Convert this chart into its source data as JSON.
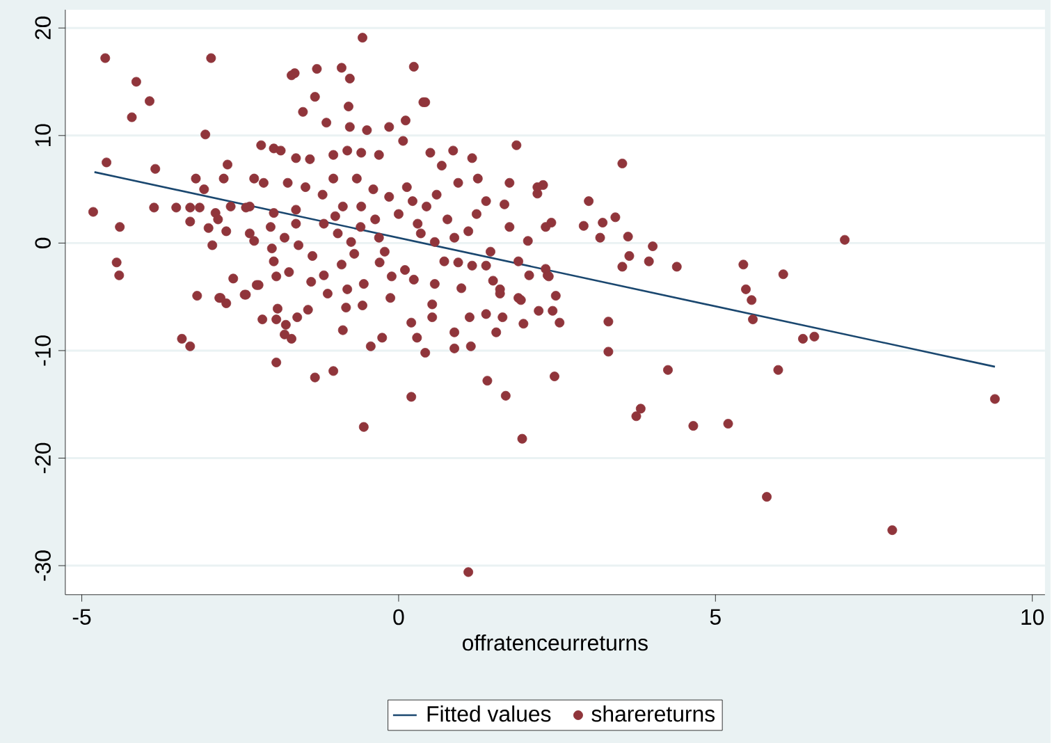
{
  "chart_data": {
    "type": "scatter",
    "xlabel": "offratenceurreturns",
    "xlim": [
      -5.26,
      10.2
    ],
    "ylim": [
      -32.7,
      21.7
    ],
    "xticks": [
      -5,
      0,
      5,
      10
    ],
    "yticks": [
      -30,
      -20,
      -10,
      0,
      10,
      20
    ],
    "grid": "y",
    "legend": "bottom",
    "series": [
      {
        "name": "Fitted values",
        "type": "line",
        "color": "#1a476f",
        "x": [
          -4.8,
          9.41
        ],
        "values": [
          6.6,
          -11.5
        ]
      },
      {
        "name": "sharereturns",
        "type": "scatter",
        "color": "#90353b",
        "marker": "circle",
        "x": [
          -4.82,
          -4.61,
          -4.63,
          -4.14,
          -3.93,
          -4.21,
          -4.45,
          -4.41,
          -4.4,
          -3.84,
          -2.96,
          -3.05,
          -3.42,
          -3.29,
          -3.18,
          -2.83,
          -2.72,
          -2.43,
          -2.24,
          -1.93,
          -1.73,
          -1.93,
          -1.8,
          -1.32,
          -1.03,
          -1.64,
          -1.29,
          -0.79,
          -0.57,
          -0.9,
          -0.77,
          0.24,
          0.39,
          -0.55,
          0.2,
          1.1,
          1.95,
          1.69,
          2.46,
          1.4,
          0.88,
          1.86,
          3.53,
          7.04,
          9.41,
          7.79,
          5.81,
          5.2,
          4.65,
          3.75,
          3.82,
          4.25,
          5.99,
          3.31,
          3.31,
          6.38,
          6.56,
          5.59,
          5.57,
          5.48,
          5.44,
          6.07,
          4.39,
          3.95,
          4.01,
          3.53,
          3.62,
          3.64,
          3.18,
          3.42,
          3.22,
          2.92,
          3.0,
          2.28,
          2.19,
          2.41,
          2.35,
          2.21,
          2.43,
          2.54,
          2.48,
          -2.17,
          -1.97,
          -1.86,
          -1.62,
          -1.4,
          -1.03,
          -0.81,
          -0.59,
          -0.31,
          -0.15,
          0.07,
          0.11,
          -0.5,
          -0.77,
          -1.14,
          -1.51,
          -1.32,
          -1.69,
          0.42,
          0.5,
          0.86,
          1.16,
          0.68,
          0.94,
          1.25,
          1.38,
          1.67,
          1.75,
          2.19,
          1.75,
          2.32,
          1.23,
          1.1,
          1.45,
          2.04,
          1.89,
          2.32,
          0.77,
          0.44,
          0.13,
          -0.15,
          -0.66,
          -1.03,
          -1.47,
          -1.75,
          -2.13,
          -2.28,
          -2.35,
          -2.41,
          -2.65,
          -2.7,
          -2.76,
          -3.2,
          -3.07,
          -3.51,
          -3.29,
          -3.14,
          -3.86,
          -3.29,
          -2.89,
          -2.85,
          -3.0,
          -2.72,
          -2.94,
          -2.35,
          -2.28,
          -2.02,
          -1.97,
          -1.62,
          -1.62,
          -1.58,
          -1.36,
          -1.18,
          -0.96,
          -0.75,
          -0.88,
          -0.59,
          -0.37,
          -0.31,
          -0.22,
          0.0,
          0.22,
          0.35,
          0.57,
          0.88,
          0.72,
          0.94,
          1.16,
          1.38,
          1.6,
          1.89,
          -1.97,
          -1.93,
          -2.61,
          -2.21,
          -2.41,
          -2.81,
          -2.15,
          -1.91,
          -1.78,
          -1.69,
          -1.6,
          -1.43,
          -1.38,
          -1.18,
          -1.12,
          -0.88,
          -0.83,
          -0.81,
          -0.57,
          -0.55,
          -0.44,
          -0.26,
          -0.11,
          -0.13,
          0.2,
          0.24,
          0.29,
          0.42,
          0.53,
          0.53,
          0.57,
          0.99,
          0.88,
          1.14,
          1.12,
          1.38,
          1.54,
          1.64,
          1.49,
          1.6,
          1.93,
          1.97,
          2.06,
          2.37,
          -1.2,
          -0.6,
          -0.3,
          0.1,
          -1.8,
          -0.9,
          -0.4,
          0.6,
          -2.0,
          0.3,
          -1.0,
          -0.7
        ],
        "values": [
          2.9,
          7.5,
          17.2,
          15.0,
          13.2,
          11.7,
          -1.8,
          -3.0,
          1.5,
          6.9,
          17.2,
          10.1,
          -8.9,
          -9.6,
          -4.9,
          -5.1,
          -5.6,
          -4.8,
          -3.9,
          -7.1,
          -2.7,
          -11.1,
          -8.5,
          -12.5,
          -11.9,
          15.8,
          16.2,
          12.7,
          19.1,
          16.3,
          15.3,
          16.4,
          13.1,
          -17.1,
          -14.3,
          -30.6,
          -18.2,
          -14.2,
          -12.4,
          -12.8,
          -8.3,
          9.1,
          7.4,
          0.3,
          -14.5,
          -26.7,
          -23.6,
          -16.8,
          -17.0,
          -16.1,
          -15.4,
          -11.8,
          -11.8,
          -10.1,
          -7.3,
          -8.9,
          -8.7,
          -7.1,
          -5.3,
          -4.3,
          -2.0,
          -2.9,
          -2.2,
          -1.7,
          -0.3,
          -2.2,
          0.6,
          -1.2,
          0.5,
          2.4,
          1.9,
          1.6,
          3.9,
          5.4,
          4.6,
          1.9,
          -3.0,
          -6.3,
          -6.3,
          -7.4,
          -4.9,
          9.1,
          8.8,
          8.6,
          7.9,
          7.8,
          8.2,
          8.6,
          8.4,
          8.2,
          10.8,
          9.5,
          11.4,
          10.5,
          10.8,
          11.2,
          12.2,
          13.6,
          15.6,
          13.1,
          8.4,
          8.6,
          7.9,
          7.2,
          5.6,
          6.0,
          3.9,
          3.6,
          5.6,
          5.2,
          1.5,
          1.5,
          2.7,
          1.1,
          -0.8,
          0.2,
          -1.7,
          -2.4,
          2.2,
          3.4,
          5.2,
          4.3,
          6.0,
          6.0,
          5.2,
          5.6,
          5.6,
          6.0,
          3.4,
          3.3,
          3.4,
          7.3,
          6.0,
          6.0,
          5.0,
          3.3,
          3.3,
          3.3,
          3.3,
          2.0,
          2.8,
          2.2,
          1.4,
          1.1,
          -0.2,
          0.9,
          0.2,
          1.5,
          2.8,
          3.1,
          1.8,
          -0.2,
          -1.2,
          1.8,
          0.9,
          0.1,
          3.4,
          3.4,
          2.2,
          0.5,
          -0.8,
          2.7,
          3.9,
          0.9,
          0.1,
          0.5,
          -1.7,
          -1.8,
          -2.1,
          -2.1,
          -4.3,
          -5.1,
          -1.7,
          -3.1,
          -3.3,
          -3.9,
          -4.8,
          -5.1,
          -7.1,
          -6.1,
          -7.6,
          -8.9,
          -6.9,
          -6.2,
          -3.6,
          -3.0,
          -4.7,
          -8.1,
          -6.0,
          -4.3,
          -5.8,
          -3.8,
          -9.6,
          -8.8,
          -3.1,
          -5.1,
          -7.4,
          -3.4,
          -8.8,
          -10.2,
          -6.9,
          -5.7,
          -3.8,
          -4.2,
          -9.8,
          -9.6,
          -6.9,
          -6.6,
          -8.3,
          -6.9,
          -3.5,
          -4.7,
          -5.3,
          -7.5,
          -3.0,
          -3.1,
          4.5,
          1.5,
          -1.8,
          -2.5,
          0.5,
          -2.0,
          5.0,
          4.5,
          -0.5,
          1.8,
          2.5,
          -1.0
        ]
      }
    ]
  }
}
